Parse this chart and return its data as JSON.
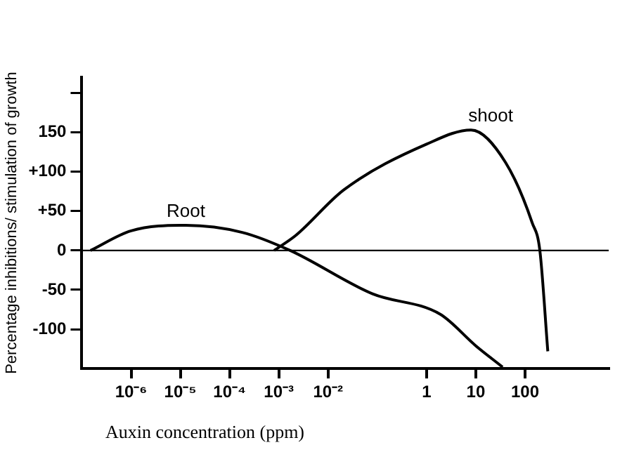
{
  "chart_data": {
    "type": "line",
    "xlabel": "Auxin concentration (ppm)",
    "ylabel": "Percentage inhibitions/ stimulation of growth",
    "log": "x",
    "grid": false,
    "marker": "none",
    "line_style": "solid",
    "xlim": [
      1e-07,
      5000
    ],
    "ylim": [
      -150,
      220
    ],
    "xticks": [
      {
        "value": 1e-06,
        "label": "10⁻⁶"
      },
      {
        "value": 1e-05,
        "label": "10⁻⁵"
      },
      {
        "value": 0.0001,
        "label": "10⁻⁴"
      },
      {
        "value": 0.001,
        "label": "10⁻³"
      },
      {
        "value": 0.01,
        "label": "10⁻²"
      },
      1,
      10,
      100
    ],
    "yticks": [
      {
        "value": -100,
        "label": "-100"
      },
      -50,
      0,
      {
        "value": 50,
        "label": "+50"
      },
      {
        "value": 100,
        "label": "+100"
      },
      150,
      {
        "value": 200,
        "label": null
      }
    ],
    "ref_lines": [
      {
        "axis": "y",
        "value": 0
      }
    ],
    "series": [
      {
        "name": "Root",
        "color": "#000000",
        "x": [
          1.5e-07,
          1e-06,
          1.3e-05,
          0.00018,
          0.0017,
          0.08,
          1.9,
          10,
          35
        ],
        "values": [
          0,
          25,
          32,
          23,
          0,
          -55,
          -81,
          -121,
          -148
        ]
      },
      {
        "name": "shoot",
        "color": "#000000",
        "x": [
          0.0008,
          0.0022,
          0.021,
          1,
          8,
          40,
          140,
          200,
          290
        ],
        "values": [
          0,
          19,
          77,
          135,
          153,
          112,
          35,
          0,
          -128
        ]
      }
    ]
  }
}
